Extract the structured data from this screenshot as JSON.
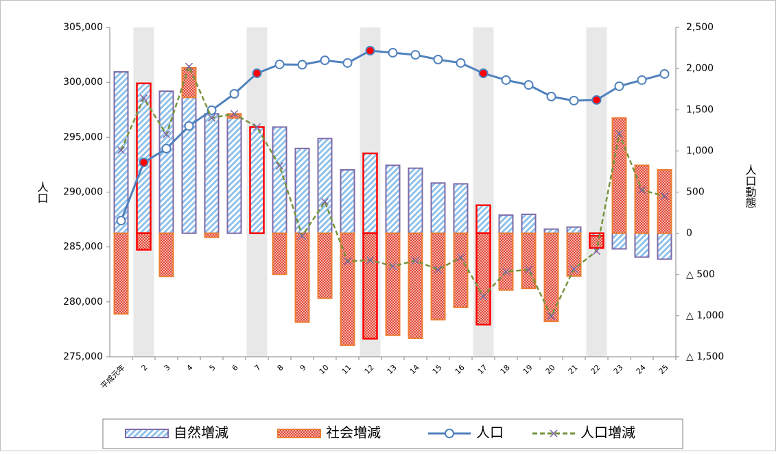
{
  "chart_data": {
    "type": "bar",
    "y_label": "人口",
    "y2_label": "人口動態",
    "categories": [
      "平成元年",
      "2",
      "3",
      "4",
      "5",
      "6",
      "7",
      "8",
      "9",
      "10",
      "11",
      "12",
      "13",
      "14",
      "15",
      "16",
      "17",
      "18",
      "19",
      "20",
      "21",
      "22",
      "23",
      "24",
      "25"
    ],
    "series": [
      {
        "name": "自然増減",
        "type": "bar",
        "axis": "y2",
        "color": "#5b9bd5",
        "values": [
          1960,
          1820,
          1725,
          1650,
          1450,
          1400,
          1290,
          1290,
          1030,
          1150,
          770,
          970,
          825,
          790,
          610,
          600,
          340,
          220,
          230,
          50,
          75,
          -30,
          -190,
          -290,
          -315
        ]
      },
      {
        "name": "社会増減",
        "type": "bar",
        "axis": "y2",
        "color": "#ed7d31",
        "values": [
          -980,
          -200,
          -525,
          360,
          -50,
          50,
          0,
          -500,
          -1080,
          -790,
          -1360,
          -1280,
          -1240,
          -1275,
          -1050,
          -900,
          -1110,
          -690,
          -670,
          -1070,
          -520,
          -150,
          1400,
          825,
          770
        ]
      },
      {
        "name": "人口",
        "type": "line",
        "axis": "y",
        "color": "#4f81bd",
        "values": [
          287400,
          292700,
          293960,
          296020,
          297450,
          298950,
          300820,
          301630,
          301600,
          302000,
          301760,
          302880,
          302690,
          302500,
          302070,
          301760,
          300820,
          300200,
          299760,
          298700,
          298330,
          298390,
          299640,
          300200,
          300760
        ]
      },
      {
        "name": "人口増減",
        "type": "line",
        "axis": "y2",
        "color": "#77933c",
        "values": [
          1008,
          1640,
          1200,
          2025,
          1400,
          1450,
          1290,
          817,
          -33,
          383,
          -342,
          -325,
          -400,
          -333,
          -442,
          -292,
          -767,
          -467,
          -442,
          -1008,
          -433,
          -217,
          1208,
          525,
          450
        ]
      }
    ],
    "ylim": [
      275000,
      305000
    ],
    "yticks": [
      {
        "value": 275000,
        "label": "275,000"
      },
      {
        "value": 280000,
        "label": "280,000"
      },
      {
        "value": 285000,
        "label": "285,000"
      },
      {
        "value": 290000,
        "label": "290,000"
      },
      {
        "value": 295000,
        "label": "295,000"
      },
      {
        "value": 300000,
        "label": "300,000"
      },
      {
        "value": 305000,
        "label": "305,000"
      }
    ],
    "y2lim": [
      -1500,
      2500
    ],
    "y2ticks": [
      {
        "value": -1500,
        "label": "△ 1,500"
      },
      {
        "value": -1000,
        "label": "△ 1,000"
      },
      {
        "value": -500,
        "label": "△ 500"
      },
      0,
      500,
      {
        "value": 1000,
        "label": "1,000"
      },
      {
        "value": 1500,
        "label": "1,500"
      },
      {
        "value": 2000,
        "label": "2,000"
      },
      {
        "value": 2500,
        "label": "2,500"
      }
    ],
    "legend": "bottom"
  }
}
